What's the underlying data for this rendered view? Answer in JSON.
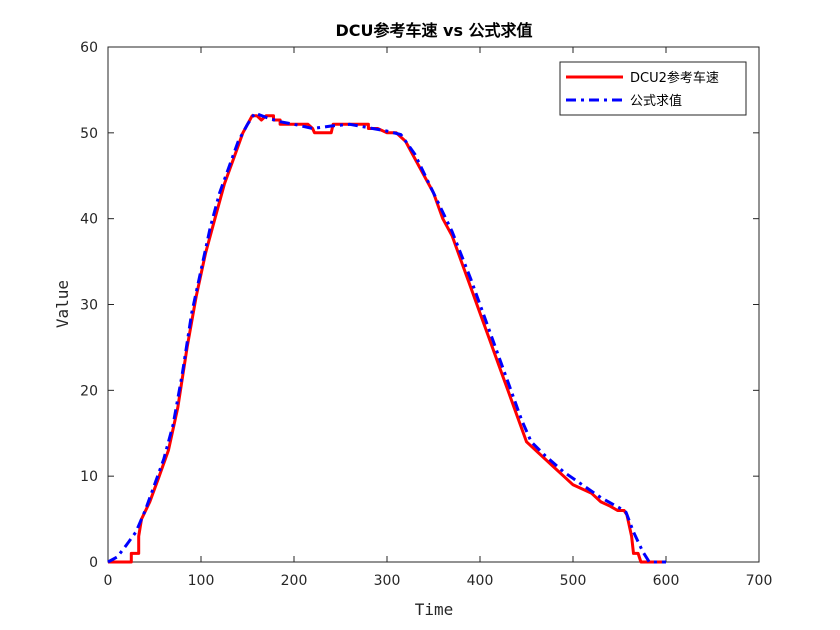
{
  "chart_data": {
    "type": "line",
    "title": "DCU参考车速 vs 公式求值",
    "xlabel": "Time",
    "ylabel": "Value",
    "xlim": [
      0,
      700
    ],
    "ylim": [
      0,
      60
    ],
    "xticks": [
      0,
      100,
      200,
      300,
      400,
      500,
      600,
      700
    ],
    "yticks": [
      0,
      10,
      20,
      30,
      40,
      50,
      60
    ],
    "grid": false,
    "legend_position": "top-right",
    "series": [
      {
        "name": "DCU2参考车速",
        "color": "#ff0000",
        "style": "solid",
        "points": [
          [
            0,
            0
          ],
          [
            25,
            0
          ],
          [
            25,
            1
          ],
          [
            33,
            1
          ],
          [
            33,
            3
          ],
          [
            36,
            5
          ],
          [
            45,
            7
          ],
          [
            55,
            10
          ],
          [
            65,
            13
          ],
          [
            75,
            18
          ],
          [
            85,
            25
          ],
          [
            95,
            31
          ],
          [
            105,
            36
          ],
          [
            115,
            40
          ],
          [
            125,
            44
          ],
          [
            135,
            47
          ],
          [
            145,
            50
          ],
          [
            155,
            52
          ],
          [
            160,
            52
          ],
          [
            165,
            51.5
          ],
          [
            170,
            52
          ],
          [
            178,
            52
          ],
          [
            178,
            51.5
          ],
          [
            185,
            51.5
          ],
          [
            185,
            51
          ],
          [
            200,
            51
          ],
          [
            215,
            51
          ],
          [
            220,
            50.5
          ],
          [
            222,
            50
          ],
          [
            240,
            50
          ],
          [
            242,
            51
          ],
          [
            250,
            51
          ],
          [
            270,
            51
          ],
          [
            280,
            51
          ],
          [
            280,
            50.5
          ],
          [
            290,
            50.5
          ],
          [
            300,
            50
          ],
          [
            310,
            50
          ],
          [
            320,
            49
          ],
          [
            330,
            47
          ],
          [
            340,
            45
          ],
          [
            350,
            43
          ],
          [
            360,
            40
          ],
          [
            370,
            38
          ],
          [
            380,
            35
          ],
          [
            390,
            32
          ],
          [
            400,
            29
          ],
          [
            410,
            26
          ],
          [
            420,
            23
          ],
          [
            430,
            20
          ],
          [
            440,
            17
          ],
          [
            450,
            14
          ],
          [
            460,
            13
          ],
          [
            470,
            12
          ],
          [
            480,
            11
          ],
          [
            490,
            10
          ],
          [
            500,
            9
          ],
          [
            510,
            8.5
          ],
          [
            520,
            8
          ],
          [
            530,
            7
          ],
          [
            540,
            6.5
          ],
          [
            548,
            6
          ],
          [
            555,
            6
          ],
          [
            558,
            5.5
          ],
          [
            563,
            3
          ],
          [
            565,
            1
          ],
          [
            570,
            1
          ],
          [
            573,
            0
          ],
          [
            600,
            0
          ]
        ]
      },
      {
        "name": "公式求值",
        "color": "#0000ff",
        "style": "dashdot",
        "points": [
          [
            0,
            0
          ],
          [
            10,
            0.6
          ],
          [
            20,
            2
          ],
          [
            30,
            3.5
          ],
          [
            40,
            6
          ],
          [
            50,
            9
          ],
          [
            60,
            12
          ],
          [
            70,
            16
          ],
          [
            80,
            22
          ],
          [
            90,
            29
          ],
          [
            100,
            34
          ],
          [
            110,
            39
          ],
          [
            120,
            43
          ],
          [
            130,
            46
          ],
          [
            140,
            49
          ],
          [
            150,
            51
          ],
          [
            158,
            52.3
          ],
          [
            170,
            51.8
          ],
          [
            185,
            51.3
          ],
          [
            200,
            51
          ],
          [
            220,
            50.5
          ],
          [
            240,
            50.8
          ],
          [
            260,
            51
          ],
          [
            280,
            50.6
          ],
          [
            300,
            50.2
          ],
          [
            315,
            49.8
          ],
          [
            330,
            47.5
          ],
          [
            350,
            43
          ],
          [
            370,
            38.5
          ],
          [
            390,
            33
          ],
          [
            410,
            27
          ],
          [
            430,
            21
          ],
          [
            445,
            16.5
          ],
          [
            455,
            14
          ],
          [
            470,
            12.4
          ],
          [
            490,
            10.5
          ],
          [
            510,
            9
          ],
          [
            530,
            7.5
          ],
          [
            550,
            6.3
          ],
          [
            557,
            5.8
          ],
          [
            565,
            3.5
          ],
          [
            575,
            1.2
          ],
          [
            582,
            0
          ],
          [
            600,
            0
          ]
        ]
      }
    ]
  }
}
